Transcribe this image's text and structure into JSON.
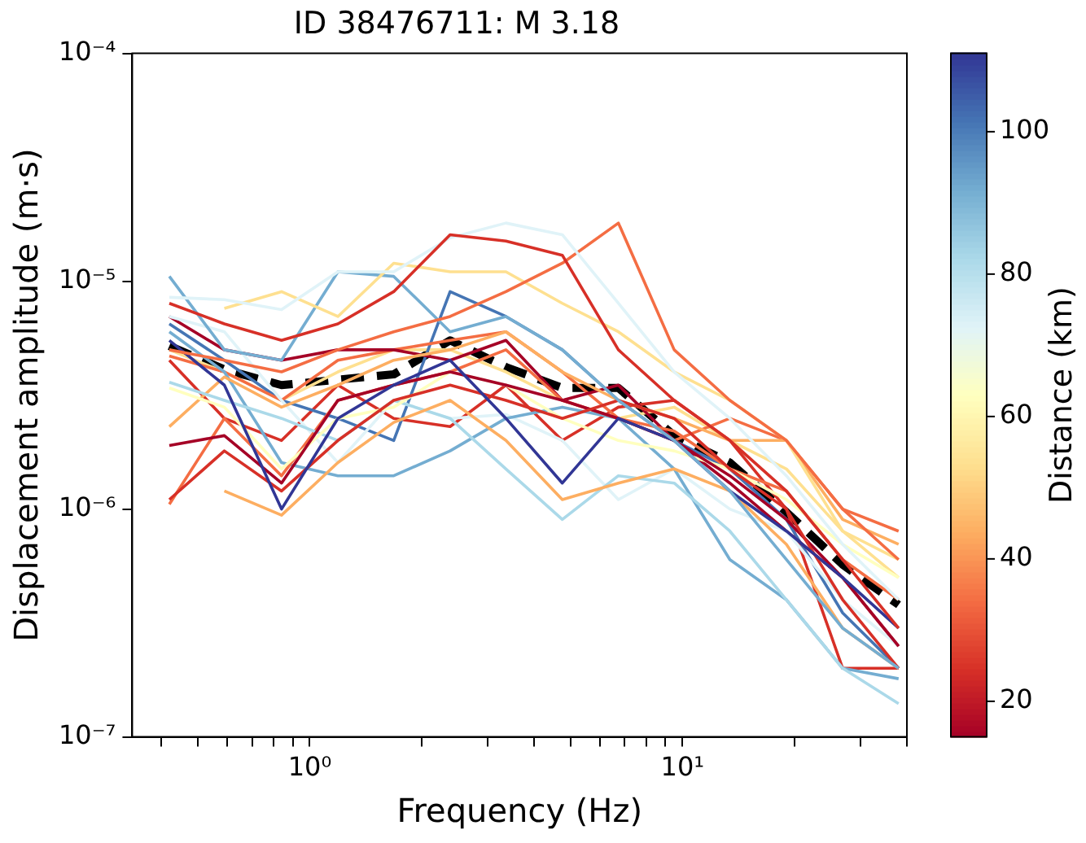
{
  "chart_data": {
    "type": "line",
    "title": "ID 38476711: M 3.18",
    "xlabel": "Frequency (Hz)",
    "ylabel": "Displacement amplitude (m·s)",
    "clabel": "Distance (km)",
    "x": [
      0.42,
      0.59,
      0.84,
      1.19,
      1.68,
      2.38,
      3.36,
      4.76,
      6.73,
      9.5,
      13.4,
      19,
      26.9,
      38
    ],
    "log": "xy",
    "grid": false,
    "legend": false,
    "marker": "none",
    "xlim": [
      0.334,
      40
    ],
    "ylim": [
      1e-07,
      0.0001
    ],
    "xticks": [
      {
        "value": 0.4,
        "label": null
      },
      {
        "value": 0.5,
        "label": null
      },
      {
        "value": 0.6,
        "label": null
      },
      {
        "value": 0.7,
        "label": null
      },
      {
        "value": 0.8,
        "label": null
      },
      {
        "value": 0.9,
        "label": null
      },
      {
        "value": 1,
        "label": "10⁰"
      },
      {
        "value": 2,
        "label": null
      },
      {
        "value": 3,
        "label": null
      },
      {
        "value": 4,
        "label": null
      },
      {
        "value": 5,
        "label": null
      },
      {
        "value": 6,
        "label": null
      },
      {
        "value": 7,
        "label": null
      },
      {
        "value": 8,
        "label": null
      },
      {
        "value": 9,
        "label": null
      },
      {
        "value": 10,
        "label": "10¹"
      },
      {
        "value": 20,
        "label": null
      },
      {
        "value": 30,
        "label": null
      },
      {
        "value": 40,
        "label": null
      }
    ],
    "yticks": [
      {
        "value": 1e-07,
        "label": "10⁻⁷"
      },
      {
        "value": 1e-06,
        "label": "10⁻⁶"
      },
      {
        "value": 1e-05,
        "label": "10⁻⁵"
      },
      {
        "value": 0.0001,
        "label": "10⁻⁴"
      }
    ],
    "clim": [
      15,
      111
    ],
    "cticks": [
      20,
      40,
      60,
      80,
      100
    ],
    "series": [
      {
        "color": "#d73027",
        "values": [
          8e-06,
          6.5e-06,
          5.5e-06,
          6.5e-06,
          9e-06,
          1.6e-05,
          1.5e-05,
          1.3e-05,
          5e-06,
          3e-06,
          2e-06,
          1.2e-06,
          6e-07,
          3e-07
        ]
      },
      {
        "color": "#e0f3f8",
        "values": [
          8.5e-06,
          8.3e-06,
          7.5e-06,
          1.1e-05,
          1.1e-05,
          1.55e-05,
          1.8e-05,
          1.6e-05,
          8e-06,
          4e-06,
          2.5e-06,
          1.4e-06,
          7e-07,
          4e-07
        ]
      },
      {
        "color": "#f46d43",
        "values": [
          5e-06,
          4.5e-06,
          4e-06,
          5e-06,
          6e-06,
          7e-06,
          9e-06,
          1.2e-05,
          1.8e-05,
          5e-06,
          3e-06,
          2e-06,
          1e-06,
          6e-07
        ]
      },
      {
        "color": "#fee090",
        "values": [
          null,
          7.6e-06,
          9e-06,
          7e-06,
          1.2e-05,
          1.1e-05,
          1.1e-05,
          8e-06,
          6e-06,
          4e-06,
          3e-06,
          2e-06,
          8e-07,
          6e-07
        ]
      },
      {
        "color": "#74add1",
        "values": [
          1.05e-05,
          5e-06,
          4.5e-06,
          1.1e-05,
          1.05e-05,
          6e-06,
          7e-06,
          5e-06,
          3e-06,
          2e-06,
          1.2e-06,
          6e-07,
          3e-07,
          2e-07
        ]
      },
      {
        "color": "#313695",
        "values": [
          5.5e-06,
          3.5e-06,
          1e-06,
          2.5e-06,
          3.5e-06,
          4.5e-06,
          2.5e-06,
          1.3e-06,
          2.5e-06,
          2e-06,
          1.2e-06,
          8e-07,
          5e-07,
          3e-07
        ]
      },
      {
        "color": "#d73027",
        "values": [
          1.1e-06,
          1.8e-06,
          1.2e-06,
          2e-06,
          3e-06,
          3.5e-06,
          3e-06,
          2.5e-06,
          3e-06,
          2.5e-06,
          1.5e-06,
          1e-06,
          4e-07,
          2e-07
        ]
      },
      {
        "color": "#fdae61",
        "values": [
          null,
          1.2e-06,
          9.4e-07,
          1.6e-06,
          2.4e-06,
          3e-06,
          2e-06,
          1.1e-06,
          1.3e-06,
          1.5e-06,
          1.2e-06,
          7e-07,
          3e-07,
          2e-07
        ]
      },
      {
        "color": "#a50026",
        "values": [
          1.9e-06,
          2.1e-06,
          1.3e-06,
          3e-06,
          3.5e-06,
          4e-06,
          3.5e-06,
          3e-06,
          2.5e-06,
          2e-06,
          1.4e-06,
          9e-07,
          5e-07,
          2.5e-07
        ]
      },
      {
        "color": "#ffffbf",
        "values": [
          3.4e-06,
          2.8e-06,
          1.5e-06,
          2.5e-06,
          2.8e-06,
          4e-06,
          3.5e-06,
          2.5e-06,
          2e-06,
          1.8e-06,
          1.5e-06,
          1.1e-06,
          7e-07,
          5e-07
        ]
      },
      {
        "color": "#abd9e9",
        "values": [
          3.6e-06,
          3e-06,
          2.5e-06,
          2e-06,
          3e-06,
          2.5e-06,
          1.5e-06,
          9e-07,
          1.4e-06,
          1.3e-06,
          8e-07,
          4e-07,
          2e-07,
          1.4e-07
        ]
      },
      {
        "color": "#f46d43",
        "values": [
          1.05e-06,
          2.5e-06,
          1.4e-06,
          3e-06,
          3.5e-06,
          4e-06,
          5e-06,
          3e-06,
          2.5e-06,
          2.2e-06,
          1.5e-06,
          1.2e-06,
          6e-07,
          4e-07
        ]
      },
      {
        "color": "#fdae61",
        "values": [
          2.3e-06,
          3.8e-06,
          2.8e-06,
          3.5e-06,
          4.5e-06,
          5e-06,
          6e-06,
          4e-06,
          3e-06,
          2.5e-06,
          2e-06,
          2e-06,
          9e-07,
          7e-07
        ]
      },
      {
        "color": "#74add1",
        "values": [
          6e-06,
          4e-06,
          1.6e-06,
          1.4e-06,
          1.4e-06,
          1.8e-06,
          2.5e-06,
          2.8e-06,
          2.5e-06,
          1.5e-06,
          6e-07,
          4e-07,
          2e-07,
          1.8e-07
        ]
      },
      {
        "color": "#e0f3f8",
        "values": [
          7e-06,
          6e-06,
          3e-06,
          1.6e-06,
          3e-06,
          2.5e-06,
          2.6e-06,
          2e-06,
          1.1e-06,
          1.5e-06,
          1e-06,
          8e-07,
          4e-07,
          2.5e-07
        ]
      },
      {
        "color": "#a50026",
        "values": [
          7e-06,
          5e-06,
          4.5e-06,
          5e-06,
          5e-06,
          4.5e-06,
          5.5e-06,
          3e-06,
          3.5e-06,
          2e-06,
          1.3e-06,
          8e-07,
          5e-07,
          2.5e-07
        ]
      },
      {
        "color": "#f46d43",
        "values": [
          4.7e-06,
          4e-06,
          3e-06,
          4.5e-06,
          5e-06,
          5.5e-06,
          6e-06,
          4e-06,
          2.5e-06,
          2e-06,
          2.5e-06,
          2e-06,
          1e-06,
          8e-07
        ]
      },
      {
        "color": "#4575b4",
        "values": [
          6.5e-06,
          4.5e-06,
          3e-06,
          2.5e-06,
          2e-06,
          9e-06,
          7e-06,
          5e-06,
          3e-06,
          2e-06,
          1.5e-06,
          9e-07,
          3.5e-07,
          2e-07
        ]
      },
      {
        "color": "#fee090",
        "values": [
          5e-06,
          4e-06,
          3e-06,
          4e-06,
          5e-06,
          5e-06,
          4e-06,
          3e-06,
          2.5e-06,
          2.8e-06,
          2e-06,
          1.5e-06,
          8e-07,
          5e-07
        ]
      },
      {
        "color": "#d73027",
        "values": [
          4.5e-06,
          2.5e-06,
          2e-06,
          3.5e-06,
          2.5e-06,
          2.3e-06,
          3.5e-06,
          2e-06,
          2.8e-06,
          3e-06,
          2e-06,
          1e-06,
          2e-07,
          2e-07
        ]
      },
      {
        "color": "#000000",
        "line_style": "dashed",
        "values": [
          5.2e-06,
          4.1e-06,
          3.5e-06,
          3.7e-06,
          3.9e-06,
          5.5e-06,
          4.2e-06,
          3.4e-06,
          3.4e-06,
          2.1e-06,
          1.6e-06,
          9.7e-07,
          5.7e-07,
          3.8e-07
        ]
      }
    ]
  }
}
